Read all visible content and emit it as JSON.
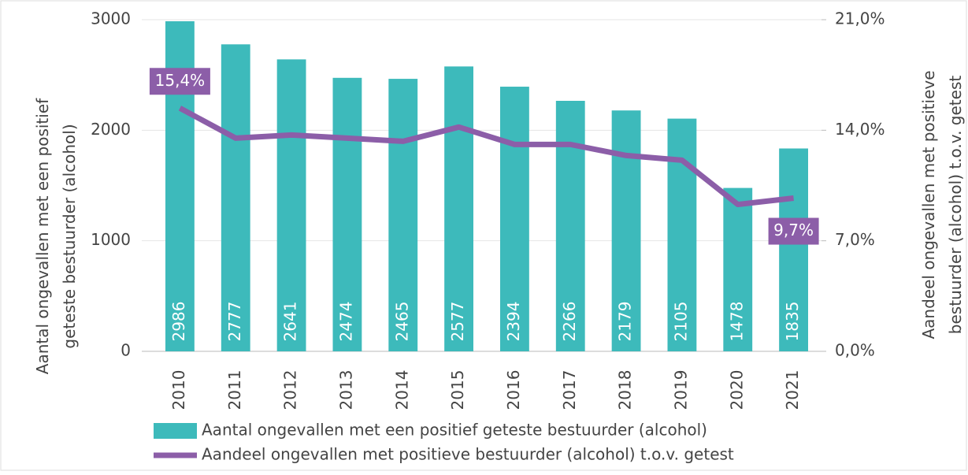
{
  "chart_data": {
    "type": "bar-line",
    "y_label": [
      "Aantal ongevallen met een positief",
      "geteste bestuurder (alcohol)"
    ],
    "y2_label": [
      "Aandeel ongevallen met positieve",
      "bestuurder (alcohol) t.o.v. getest"
    ],
    "categories": [
      "2010",
      "2011",
      "2012",
      "2013",
      "2014",
      "2015",
      "2016",
      "2017",
      "2018",
      "2019",
      "2020",
      "2021"
    ],
    "series": [
      {
        "name": "Aantal ongevallen met een positief geteste bestuurder (alcohol)",
        "color": "#3dbabb",
        "type": "bar",
        "values": [
          2986,
          2777,
          2641,
          2474,
          2465,
          2577,
          2394,
          2266,
          2179,
          2105,
          1478,
          1835
        ]
      },
      {
        "name": "Aandeel ongevallen met positieve bestuurder (alcohol) t.o.v. getest",
        "color": "#8c5ea8",
        "type": "line",
        "axis": "y2",
        "values": [
          15.4,
          13.5,
          13.7,
          13.5,
          13.3,
          14.2,
          13.1,
          13.1,
          12.4,
          12.1,
          9.3,
          9.7
        ],
        "value_labels": [
          "15,4%",
          null,
          null,
          null,
          null,
          null,
          null,
          null,
          null,
          null,
          null,
          "9,7%"
        ]
      }
    ],
    "ylim": [
      0,
      3000
    ],
    "yticks": [
      0,
      1000,
      2000,
      3000
    ],
    "y2lim": [
      0,
      21
    ],
    "y2ticks": [
      {
        "value": 0,
        "label": "0,0%"
      },
      {
        "value": 7,
        "label": "7,0%"
      },
      {
        "value": 14,
        "label": "14,0%"
      },
      {
        "value": 21,
        "label": "21,0%"
      }
    ],
    "grid": true,
    "legend": "bottom"
  }
}
